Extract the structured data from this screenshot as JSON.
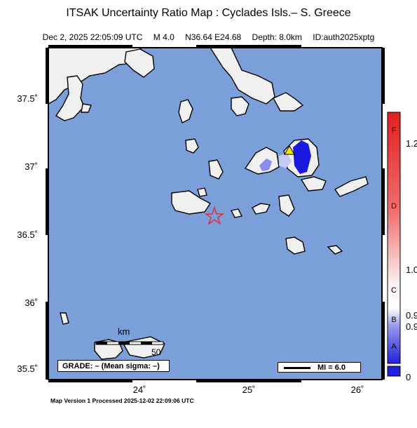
{
  "title": "ITSAK Uncertainty Ratio Map : Cyclades Isls.– S. Greece",
  "subtitle": {
    "datetime": "Dec  2, 2025 22:05:09 UTC",
    "magnitude": "M 4.0",
    "location": "N36.64 E24.68",
    "depth": "Depth: 8.0km",
    "event_id": "ID:auth2025xptg"
  },
  "axes": {
    "y_labels": [
      "37.5˚",
      "37˚",
      "36.5˚",
      "36˚",
      "35.5˚"
    ],
    "x_labels": [
      "24˚",
      "25˚",
      "26˚"
    ]
  },
  "colorbar": {
    "ticks": [
      "1.2",
      "1.0",
      "0.9",
      "0.9",
      "0"
    ],
    "grade_letters": [
      "F",
      "D",
      "C",
      "B",
      "A"
    ]
  },
  "scale_bar": {
    "unit": "km",
    "value": "50"
  },
  "grade_box": "GRADE: – (Mean sigma: –)",
  "mi_legend": "MI = 6.0",
  "footer": "Map Version 1 Processed 2025-12-02 22:09:06 UTC",
  "colors": {
    "sea": "#7a9fd9",
    "land": "#f0f0f0",
    "epicenter": "#e0303a",
    "station": "#f2e600",
    "high_uncertainty": "#1a1adf"
  },
  "map": {
    "epicenter": {
      "lat": 36.64,
      "lon": 24.68
    },
    "station": {
      "symbol": "triangle"
    }
  }
}
